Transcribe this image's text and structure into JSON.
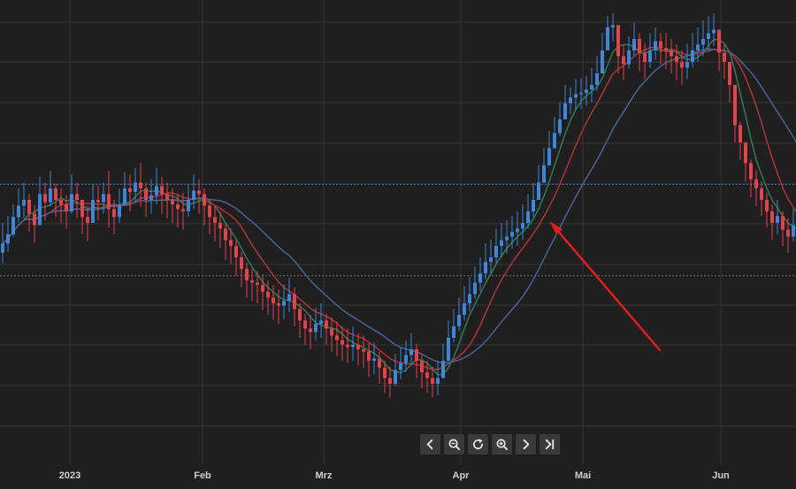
{
  "chart_data": {
    "type": "candlestick",
    "x_tick_labels": [
      "2023",
      "Feb",
      "Mrz",
      "Apr",
      "Mai",
      "Jun"
    ],
    "y_tick_labels": [],
    "grid": true,
    "legend": "none",
    "reference_lines": [
      {
        "value": 213.5,
        "style": "dotted",
        "color": "#4a6da0"
      },
      {
        "value": 134,
        "style": "dotted",
        "color": "#6a6a6a"
      }
    ],
    "moving_averages": [
      {
        "period": 5,
        "color": "#2f7a52"
      },
      {
        "period": 10,
        "color": "#a8343f"
      },
      {
        "period": 20,
        "color": "#4a6391"
      }
    ],
    "colors": {
      "up": "#3f86d8",
      "down": "#e5424f",
      "background": "#1f1f1f",
      "grid": "#353535"
    },
    "closes": [
      162,
      170,
      185,
      195,
      200,
      188,
      178,
      205,
      198,
      210,
      200,
      196,
      190,
      205,
      200,
      185,
      180,
      200,
      198,
      205,
      192,
      185,
      196,
      210,
      207,
      215,
      210,
      200,
      204,
      212,
      205,
      200,
      196,
      192,
      190,
      200,
      208,
      205,
      195,
      185,
      180,
      175,
      165,
      160,
      150,
      140,
      130,
      128,
      126,
      120,
      115,
      110,
      108,
      112,
      118,
      105,
      95,
      88,
      85,
      92,
      95,
      88,
      82,
      78,
      74,
      72,
      74,
      70,
      68,
      60,
      62,
      54,
      45,
      40,
      52,
      58,
      65,
      70,
      60,
      50,
      45,
      40,
      45,
      60,
      80,
      90,
      100,
      110,
      118,
      128,
      136,
      146,
      150,
      160,
      165,
      168,
      172,
      175,
      180,
      190,
      200,
      215,
      230,
      245,
      258,
      270,
      284,
      289,
      292,
      293,
      296,
      300,
      310,
      330,
      350,
      352,
      325,
      318,
      330,
      340,
      328,
      320,
      330,
      338,
      332,
      330,
      325,
      320,
      315,
      320,
      330,
      335,
      340,
      345,
      348,
      328,
      320,
      300,
      265,
      250,
      232,
      218,
      210,
      200,
      190,
      180,
      186,
      174,
      168,
      178,
      158,
      150,
      148,
      156,
      166,
      178,
      180,
      190,
      196,
      204,
      210,
      215,
      222,
      220,
      212,
      214
    ],
    "highs": [
      180,
      186,
      196,
      210,
      215,
      205,
      195,
      220,
      215,
      225,
      214,
      210,
      204,
      222,
      215,
      200,
      195,
      214,
      212,
      215,
      225,
      200,
      210,
      224,
      222,
      228,
      232,
      215,
      218,
      228,
      220,
      215,
      210,
      205,
      206,
      214,
      222,
      218,
      210,
      200,
      195,
      190,
      180,
      175,
      165,
      155,
      145,
      140,
      138,
      135,
      130,
      126,
      122,
      126,
      132,
      124,
      110,
      101,
      100,
      106,
      110,
      101,
      98,
      94,
      90,
      88,
      90,
      84,
      82,
      75,
      76,
      68,
      60,
      55,
      66,
      72,
      78,
      84,
      75,
      66,
      60,
      55,
      60,
      75,
      95,
      105,
      115,
      125,
      133,
      142,
      150,
      162,
      165,
      175,
      180,
      182,
      186,
      190,
      196,
      205,
      215,
      230,
      245,
      260,
      272,
      285,
      300,
      298,
      305,
      306,
      308,
      315,
      325,
      345,
      360,
      362,
      345,
      335,
      342,
      354,
      345,
      336,
      345,
      350,
      345,
      345,
      340,
      335,
      330,
      336,
      345,
      350,
      356,
      360,
      362,
      345,
      335,
      315,
      285,
      268,
      250,
      235,
      226,
      216,
      206,
      196,
      200,
      190,
      184,
      192,
      174,
      166,
      165,
      172,
      182,
      194,
      196,
      205,
      212,
      220,
      225,
      230,
      238,
      235,
      226,
      228
    ],
    "lows": [
      145,
      155,
      168,
      180,
      184,
      172,
      163,
      188,
      182,
      194,
      185,
      180,
      175,
      188,
      184,
      170,
      164,
      185,
      182,
      188,
      176,
      170,
      180,
      195,
      190,
      198,
      194,
      185,
      188,
      196,
      188,
      184,
      180,
      176,
      174,
      185,
      192,
      188,
      178,
      170,
      164,
      158,
      148,
      144,
      134,
      124,
      115,
      112,
      110,
      104,
      100,
      96,
      92,
      96,
      102,
      90,
      80,
      74,
      70,
      78,
      80,
      74,
      68,
      64,
      60,
      58,
      60,
      56,
      54,
      46,
      48,
      40,
      32,
      28,
      38,
      44,
      50,
      56,
      45,
      36,
      32,
      28,
      30,
      45,
      65,
      76,
      86,
      95,
      103,
      114,
      121,
      131,
      136,
      145,
      150,
      153,
      158,
      160,
      165,
      175,
      185,
      200,
      215,
      230,
      244,
      255,
      270,
      275,
      278,
      279,
      282,
      285,
      295,
      315,
      335,
      338,
      310,
      304,
      314,
      325,
      312,
      305,
      315,
      322,
      318,
      314,
      310,
      304,
      300,
      305,
      315,
      320,
      325,
      330,
      334,
      312,
      305,
      285,
      250,
      235,
      216,
      202,
      195,
      186,
      176,
      165,
      170,
      160,
      154,
      164,
      142,
      135,
      133,
      140,
      150,
      162,
      165,
      175,
      182,
      188,
      195,
      200,
      206,
      204,
      196,
      198
    ]
  }
}
